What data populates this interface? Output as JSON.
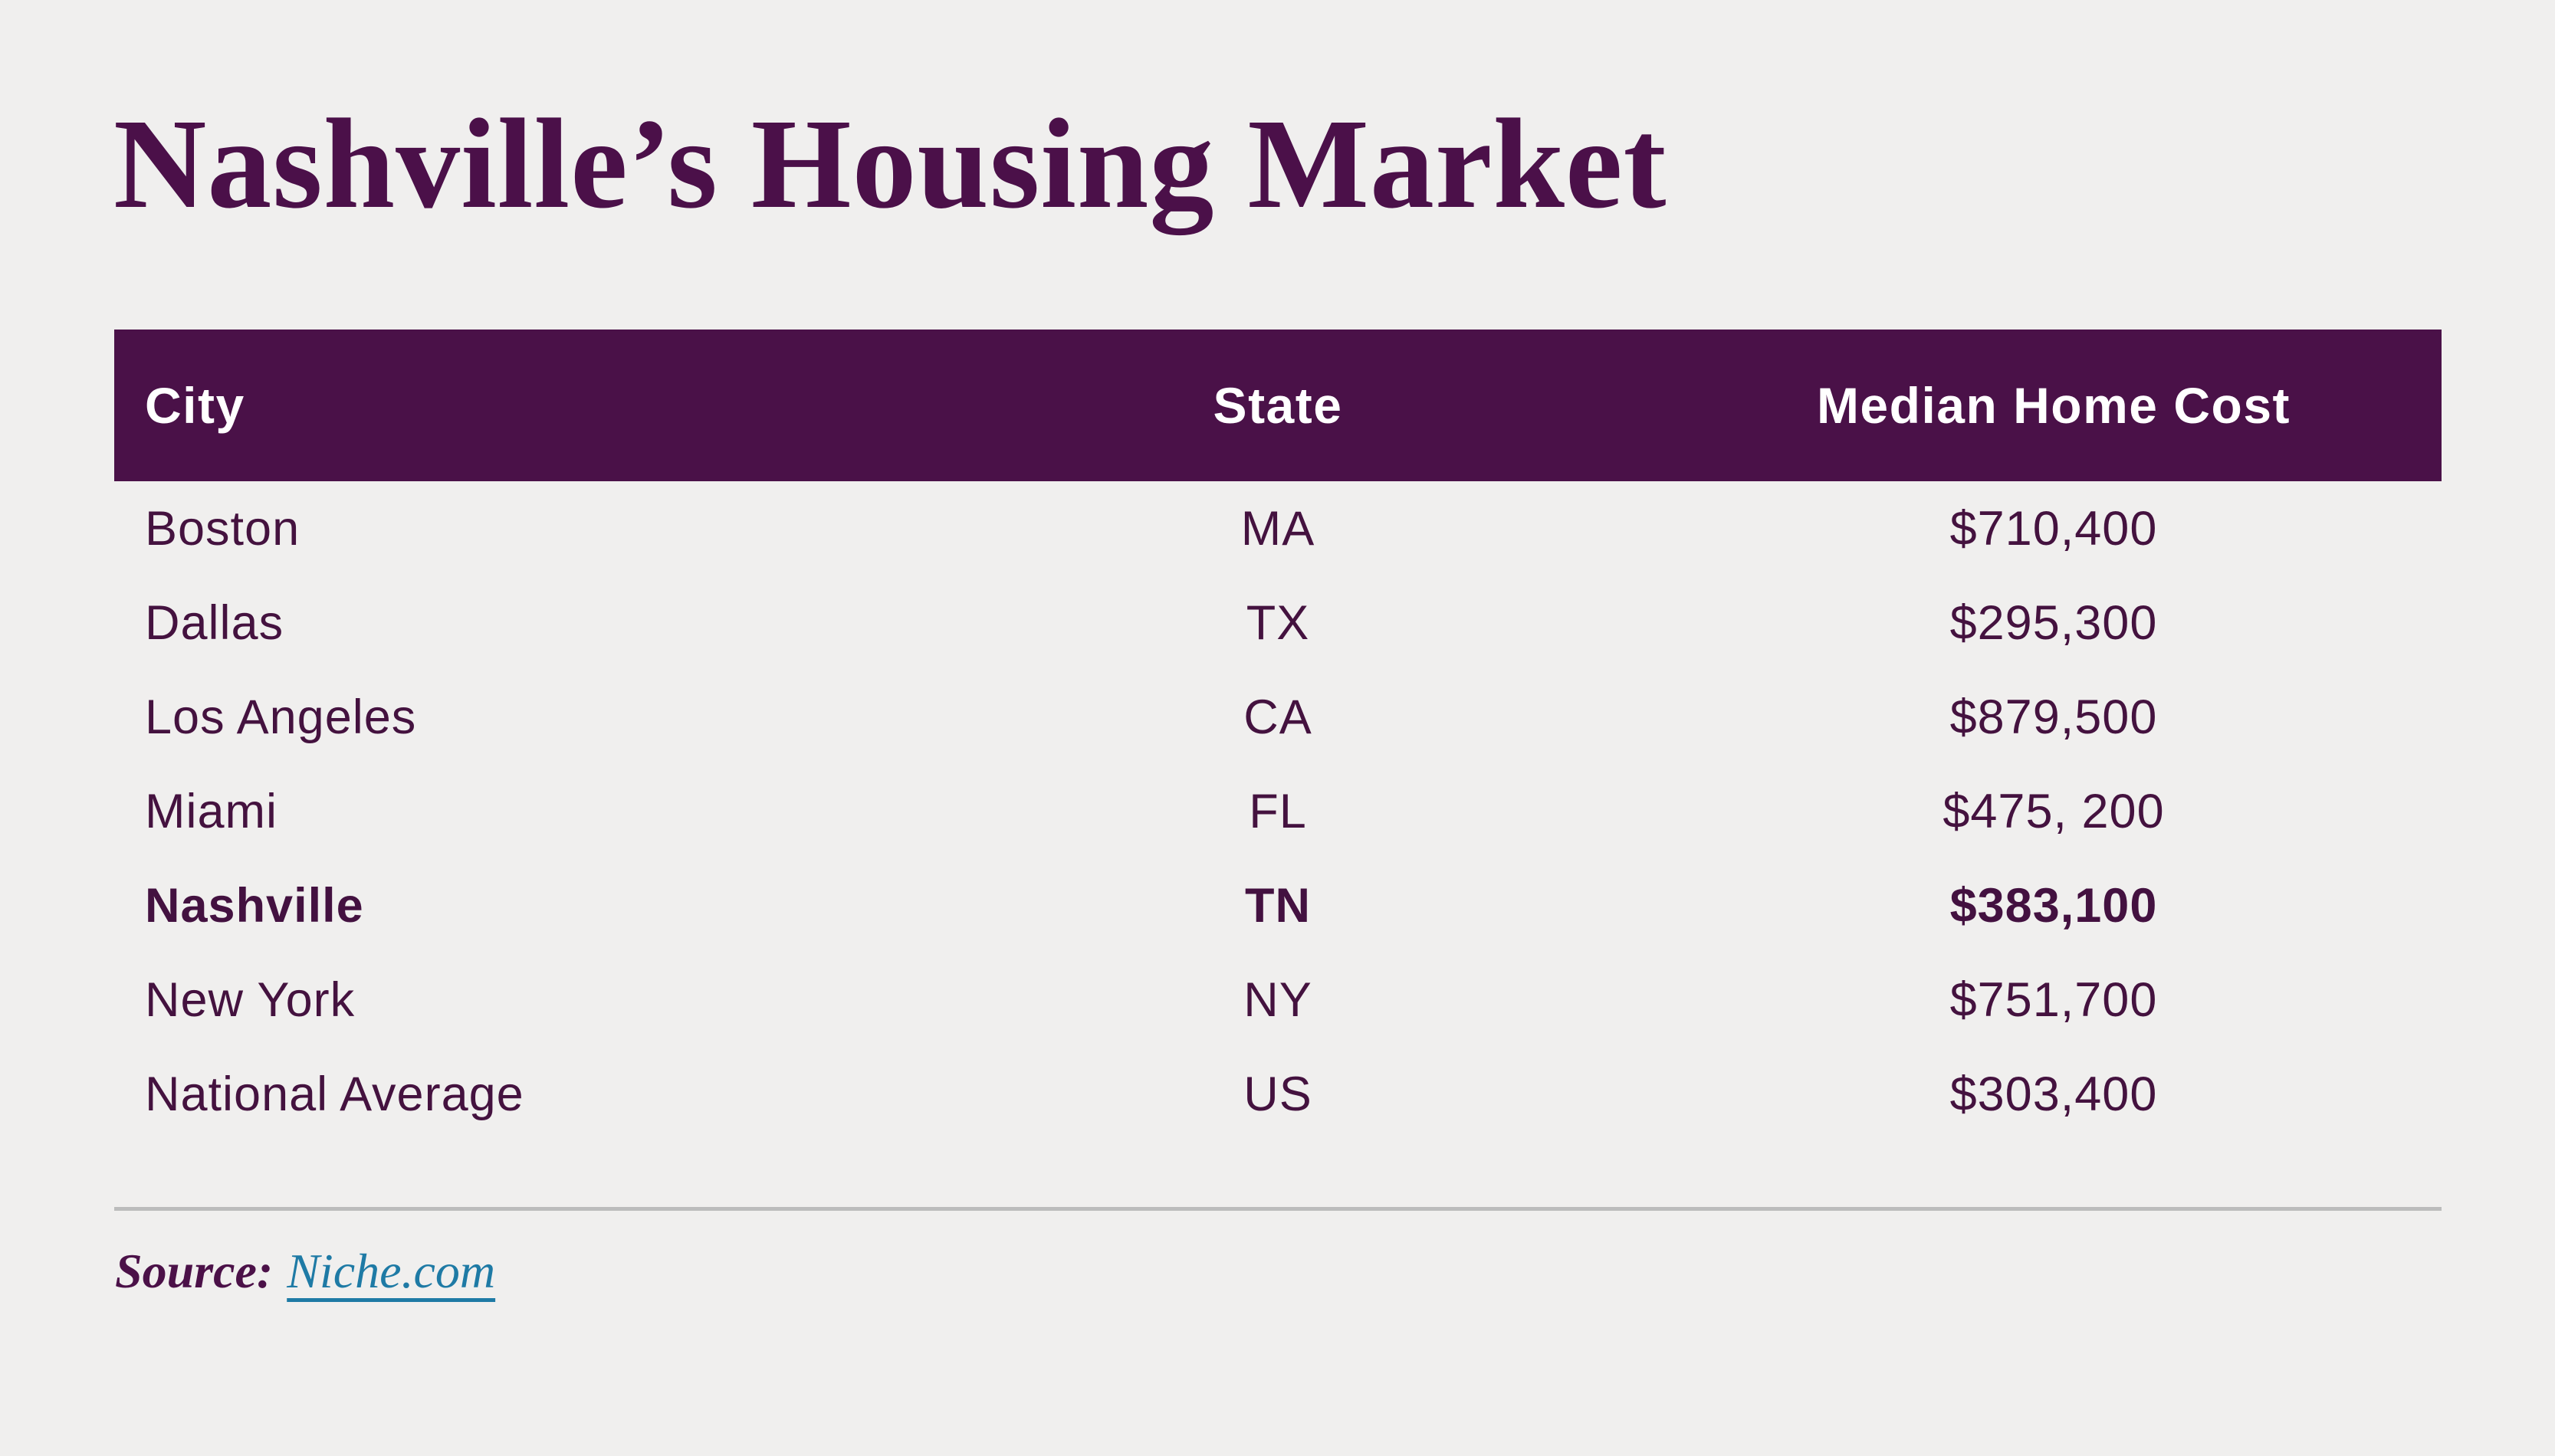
{
  "page": {
    "title": "Nashville’s Housing Market"
  },
  "colors": {
    "background": "#f0efee",
    "primary_purple": "#4a1148",
    "header_text": "#ffffff",
    "body_text": "#44123f",
    "link_teal": "#1e7aa5",
    "divider_gray": "#bcbcbc"
  },
  "table": {
    "headers": {
      "city": "City",
      "state": "State",
      "cost": "Median Home Cost"
    },
    "rows": [
      {
        "city": "Boston",
        "state": "MA",
        "cost": "$710,400"
      },
      {
        "city": "Dallas",
        "state": "TX",
        "cost": "$295,300"
      },
      {
        "city": "Los Angeles",
        "state": "CA",
        "cost": "$879,500"
      },
      {
        "city": "Miami",
        "state": "FL",
        "cost": "$475, 200"
      },
      {
        "city": "Nashville",
        "state": "TN",
        "cost": "$383,100"
      },
      {
        "city": "New York",
        "state": "NY",
        "cost": "$751,700"
      },
      {
        "city": "National Average",
        "state": "US",
        "cost": "$303,400"
      }
    ]
  },
  "source": {
    "label": "Source:",
    "link_text": "Niche.com"
  },
  "chart_data": {
    "type": "table",
    "title": "Nashville’s Housing Market",
    "columns": [
      "City",
      "State",
      "Median Home Cost"
    ],
    "rows": [
      [
        "Boston",
        "MA",
        "$710,400"
      ],
      [
        "Dallas",
        "TX",
        "$295,300"
      ],
      [
        "Los Angeles",
        "CA",
        "$879,500"
      ],
      [
        "Miami",
        "FL",
        "$475, 200"
      ],
      [
        "Nashville",
        "TN",
        "$383,100"
      ],
      [
        "New York",
        "NY",
        "$751,700"
      ],
      [
        "National Average",
        "US",
        "$303,400"
      ]
    ],
    "values_numeric": {
      "Boston": 710400,
      "Dallas": 295300,
      "Los Angeles": 879500,
      "Miami": 475200,
      "Nashville": 383100,
      "New York": 751700,
      "National Average": 303400
    },
    "highlighted_row": "Nashville",
    "source": "Niche.com"
  }
}
